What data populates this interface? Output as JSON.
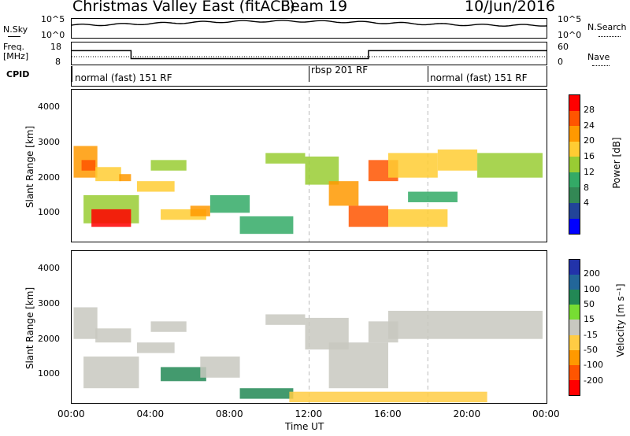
{
  "header": {
    "station": "Christmas Valley East (fitACF)",
    "beam": "Beam 19",
    "date": "10/Jun/2016"
  },
  "sky_panel": {
    "left_label": "N.Sky",
    "left_ticks": [
      "10^5",
      "10^0"
    ],
    "right_ticks": [
      "10^5",
      "10^0"
    ],
    "right_label": "N.Search"
  },
  "freq_panel": {
    "left_label_1": "Freq.",
    "left_label_2": "[MHz]",
    "left_ticks": [
      "18",
      "8"
    ],
    "right_ticks": [
      "60",
      "0"
    ],
    "right_label": "Nave"
  },
  "cpid_panel": {
    "label": "CPID",
    "segments": [
      {
        "name": "normal (fast) 151 RF",
        "start_h": 0,
        "end_h": 12
      },
      {
        "name": "rbsp 201 RF",
        "start_h": 12,
        "end_h": 18
      },
      {
        "name": "normal (fast) 151 RF",
        "start_h": 18,
        "end_h": 24
      }
    ]
  },
  "power_panel": {
    "ylabel": "Slant Range [km]",
    "colorbar_label": "Power [dB]",
    "colorbar_ticks": [
      "28",
      "24",
      "20",
      "16",
      "12",
      "8",
      "4"
    ],
    "colors": [
      "#ff0000",
      "#ff5500",
      "#ff9900",
      "#ffcc33",
      "#99cc33",
      "#33aa66",
      "#338855",
      "#224499",
      "#0000ff"
    ]
  },
  "velocity_panel": {
    "ylabel": "Slant Range [km]",
    "colorbar_label": "Velocity [m s⁻¹]",
    "colorbar_ticks": [
      "200",
      "100",
      "50",
      "15",
      "-15",
      "-50",
      "-100",
      "-200"
    ],
    "colors": [
      "#2233aa",
      "#226699",
      "#228855",
      "#77dd33",
      "#c8c8c0",
      "#ffcc44",
      "#ff9900",
      "#ff5500",
      "#ff0000"
    ]
  },
  "x_axis": {
    "label": "Time UT",
    "ticks": [
      "00:00",
      "04:00",
      "08:00",
      "12:00",
      "16:00",
      "20:00",
      "00:00"
    ]
  },
  "chart_data": {
    "type": "heatmap",
    "x_range_hours": [
      0,
      24
    ],
    "y_range_km": [
      180,
      4500
    ],
    "y_ticks": [
      1000,
      2000,
      3000,
      4000
    ],
    "frequency_mhz": {
      "segments": [
        {
          "start_h": 0,
          "end_h": 3,
          "value": 14.5
        },
        {
          "start_h": 3,
          "end_h": 15,
          "value": 10.3
        },
        {
          "start_h": 15,
          "end_h": 24,
          "value": 14.5
        }
      ]
    },
    "power_db": [
      {
        "t0": 0.1,
        "t1": 1.3,
        "r0": 2000,
        "r1": 2900,
        "v": 18
      },
      {
        "t0": 0.5,
        "t1": 1.2,
        "r0": 2200,
        "r1": 2500,
        "v": 24
      },
      {
        "t0": 1.2,
        "t1": 2.5,
        "r0": 1900,
        "r1": 2300,
        "v": 14
      },
      {
        "t0": 2.4,
        "t1": 3.0,
        "r0": 1900,
        "r1": 2100,
        "v": 20
      },
      {
        "t0": 0.6,
        "t1": 3.4,
        "r0": 700,
        "r1": 1500,
        "v": 12
      },
      {
        "t0": 1.0,
        "t1": 3.0,
        "r0": 600,
        "r1": 1100,
        "v": 26
      },
      {
        "t0": 3.3,
        "t1": 5.2,
        "r0": 1600,
        "r1": 1900,
        "v": 14
      },
      {
        "t0": 4.0,
        "t1": 5.8,
        "r0": 2200,
        "r1": 2500,
        "v": 12
      },
      {
        "t0": 4.5,
        "t1": 6.8,
        "r0": 800,
        "r1": 1100,
        "v": 14
      },
      {
        "t0": 6.0,
        "t1": 7.0,
        "r0": 900,
        "r1": 1200,
        "v": 18
      },
      {
        "t0": 7.0,
        "t1": 9.0,
        "r0": 1000,
        "r1": 1500,
        "v": 10
      },
      {
        "t0": 8.5,
        "t1": 11.2,
        "r0": 400,
        "r1": 900,
        "v": 10
      },
      {
        "t0": 9.8,
        "t1": 11.8,
        "r0": 2400,
        "r1": 2700,
        "v": 12
      },
      {
        "t0": 11.8,
        "t1": 13.5,
        "r0": 1800,
        "r1": 2600,
        "v": 12
      },
      {
        "t0": 13.0,
        "t1": 14.5,
        "r0": 1200,
        "r1": 1900,
        "v": 18
      },
      {
        "t0": 14.0,
        "t1": 16.0,
        "r0": 600,
        "r1": 1200,
        "v": 24
      },
      {
        "t0": 15.0,
        "t1": 16.5,
        "r0": 1900,
        "r1": 2500,
        "v": 22
      },
      {
        "t0": 16.0,
        "t1": 18.5,
        "r0": 2000,
        "r1": 2700,
        "v": 16
      },
      {
        "t0": 18.5,
        "t1": 20.5,
        "r0": 2200,
        "r1": 2800,
        "v": 14
      },
      {
        "t0": 20.5,
        "t1": 23.8,
        "r0": 2000,
        "r1": 2700,
        "v": 12
      },
      {
        "t0": 17.0,
        "t1": 19.5,
        "r0": 1300,
        "r1": 1600,
        "v": 10
      },
      {
        "t0": 16.0,
        "t1": 19.0,
        "r0": 600,
        "r1": 1100,
        "v": 16
      }
    ],
    "velocity_ms": [
      {
        "t0": 0.1,
        "t1": 1.3,
        "r0": 2000,
        "r1": 2900,
        "v": 0
      },
      {
        "t0": 1.2,
        "t1": 3.0,
        "r0": 1900,
        "r1": 2300,
        "v": 0
      },
      {
        "t0": 0.6,
        "t1": 3.4,
        "r0": 600,
        "r1": 1500,
        "v": 0
      },
      {
        "t0": 3.3,
        "t1": 5.2,
        "r0": 1600,
        "r1": 1900,
        "v": 0
      },
      {
        "t0": 4.0,
        "t1": 5.8,
        "r0": 2200,
        "r1": 2500,
        "v": 0
      },
      {
        "t0": 4.5,
        "t1": 6.8,
        "r0": 800,
        "r1": 1200,
        "v": 35
      },
      {
        "t0": 6.5,
        "t1": 8.5,
        "r0": 900,
        "r1": 1500,
        "v": 0
      },
      {
        "t0": 8.5,
        "t1": 11.2,
        "r0": 300,
        "r1": 600,
        "v": 35
      },
      {
        "t0": 9.8,
        "t1": 11.8,
        "r0": 2400,
        "r1": 2700,
        "v": 0
      },
      {
        "t0": 11.8,
        "t1": 14.0,
        "r0": 1700,
        "r1": 2600,
        "v": 0
      },
      {
        "t0": 13.0,
        "t1": 16.0,
        "r0": 600,
        "r1": 1900,
        "v": 0
      },
      {
        "t0": 15.0,
        "t1": 16.5,
        "r0": 1900,
        "r1": 2500,
        "v": 0
      },
      {
        "t0": 16.0,
        "t1": 23.8,
        "r0": 2000,
        "r1": 2800,
        "v": 0
      },
      {
        "t0": 11.0,
        "t1": 21.0,
        "r0": 200,
        "r1": 500,
        "v": -40
      }
    ]
  }
}
